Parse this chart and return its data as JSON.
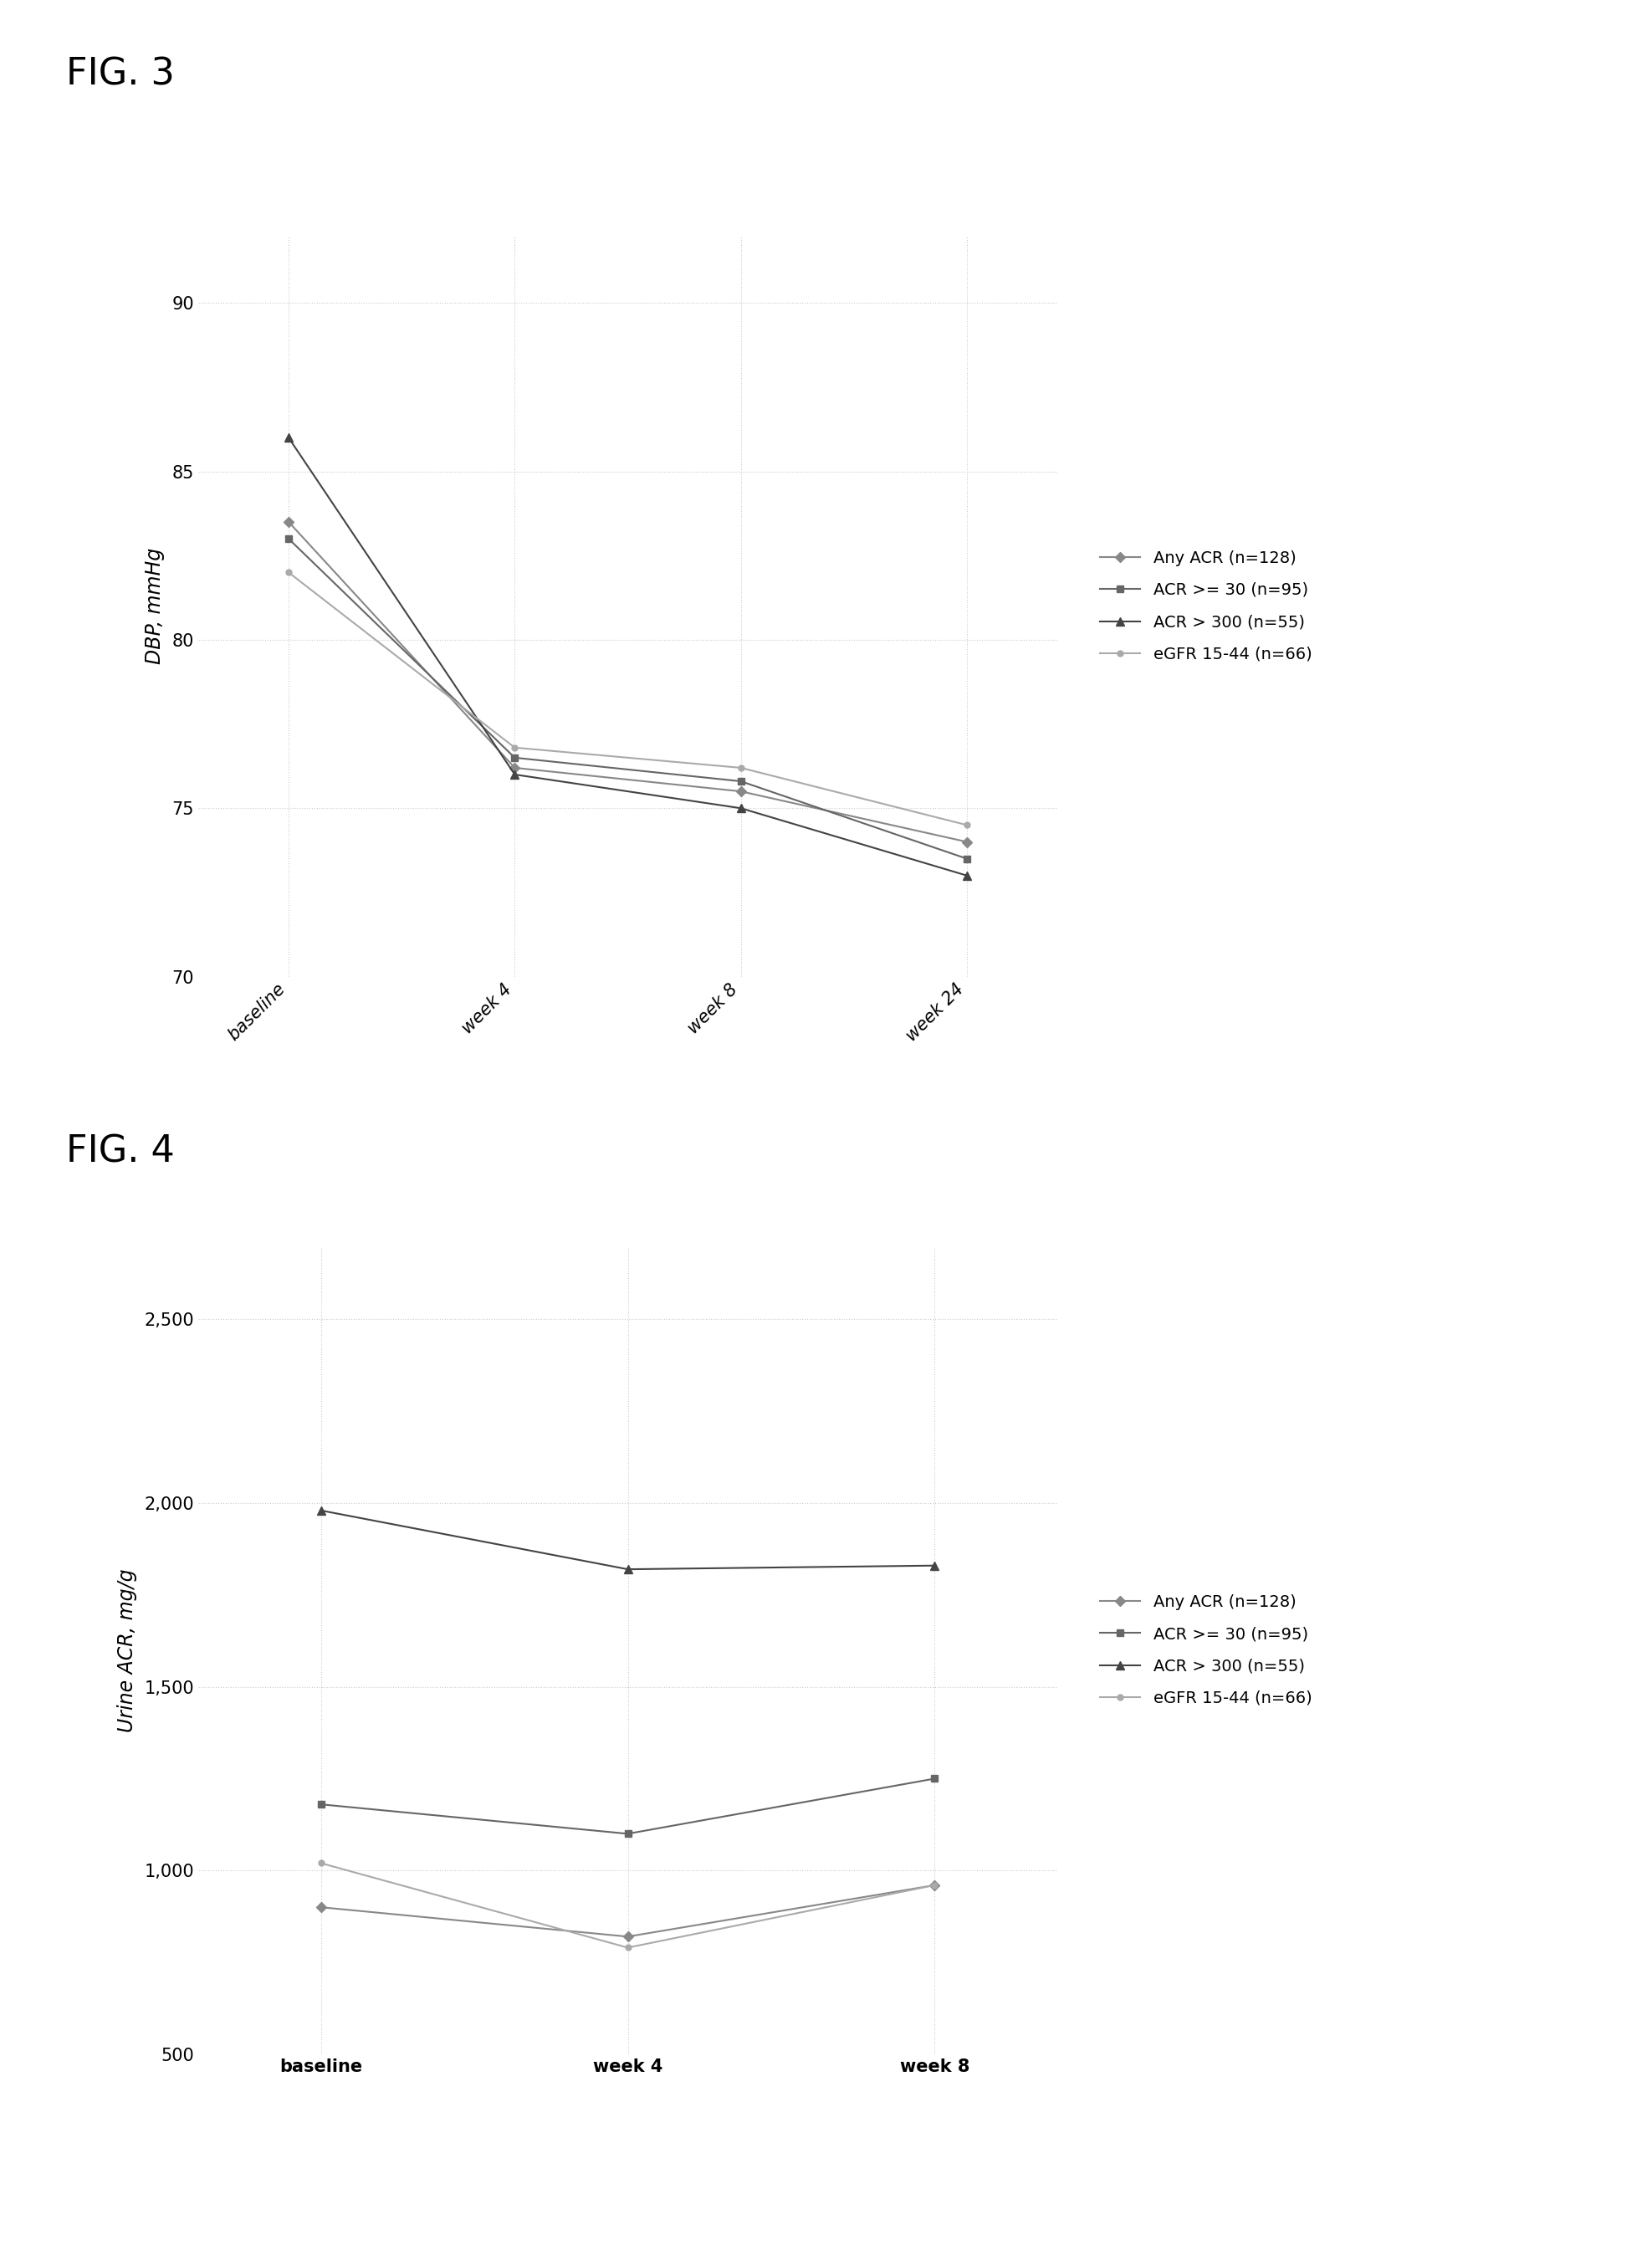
{
  "fig3": {
    "title": "FIG. 3",
    "ylabel": "DBP, mmHg",
    "xticklabels": [
      "baseline",
      "week 4",
      "week 8",
      "week 24"
    ],
    "ylim": [
      70,
      92
    ],
    "yticks": [
      70,
      75,
      80,
      85,
      90
    ],
    "series": [
      {
        "label": "Any ACR (n=128)",
        "values": [
          83.5,
          76.2,
          75.5,
          74.0
        ],
        "color": "#888888",
        "marker": "D",
        "markersize": 6,
        "linestyle": "-"
      },
      {
        "label": "ACR >= 30 (n=95)",
        "values": [
          83.0,
          76.5,
          75.8,
          73.5
        ],
        "color": "#666666",
        "marker": "s",
        "markersize": 6,
        "linestyle": "-"
      },
      {
        "label": "ACR > 300 (n=55)",
        "values": [
          86.0,
          76.0,
          75.0,
          73.0
        ],
        "color": "#444444",
        "marker": "^",
        "markersize": 7,
        "linestyle": "-"
      },
      {
        "label": "eGFR 15-44 (n=66)",
        "values": [
          82.0,
          76.8,
          76.2,
          74.5
        ],
        "color": "#aaaaaa",
        "marker": "o",
        "markersize": 5,
        "linestyle": "-"
      }
    ]
  },
  "fig4": {
    "title": "FIG. 4",
    "ylabel": "Urine ACR, mg/g",
    "xticklabels": [
      "baseline",
      "week 4",
      "week 8"
    ],
    "ylim": [
      500,
      2700
    ],
    "yticks": [
      500,
      1000,
      1500,
      2000,
      2500
    ],
    "series": [
      {
        "label": "Any ACR (n=128)",
        "values": [
          900,
          820,
          960
        ],
        "color": "#888888",
        "marker": "D",
        "markersize": 6,
        "linestyle": "-"
      },
      {
        "label": "ACR >= 30 (n=95)",
        "values": [
          1180,
          1100,
          1250
        ],
        "color": "#666666",
        "marker": "s",
        "markersize": 6,
        "linestyle": "-"
      },
      {
        "label": "ACR > 300 (n=55)",
        "values": [
          1980,
          1820,
          1830
        ],
        "color": "#444444",
        "marker": "^",
        "markersize": 7,
        "linestyle": "-"
      },
      {
        "label": "eGFR 15-44 (n=66)",
        "values": [
          1020,
          790,
          960
        ],
        "color": "#aaaaaa",
        "marker": "o",
        "markersize": 5,
        "linestyle": "-"
      }
    ]
  },
  "background_color": "#ffffff",
  "grid_color": "#cccccc",
  "fig_title_fontsize": 32,
  "axis_label_fontsize": 17,
  "tick_fontsize": 15,
  "legend_fontsize": 14,
  "line_width": 1.5
}
